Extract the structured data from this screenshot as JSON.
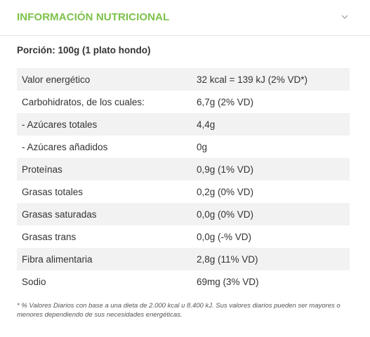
{
  "header": {
    "title": "INFORMACIÓN NUTRICIONAL"
  },
  "portion": "Porción: 100g (1 plato hondo)",
  "rows": [
    {
      "label": "Valor energético",
      "value": "32 kcal = 139 kJ (2% VD*)"
    },
    {
      "label": "Carbohidratos, de los cuales:",
      "value": "6,7g (2% VD)"
    },
    {
      "label": "- Azúcares totales",
      "value": "4,4g"
    },
    {
      "label": "- Azúcares añadidos",
      "value": "0g"
    },
    {
      "label": "Proteínas",
      "value": "0,9g (1% VD)"
    },
    {
      "label": "Grasas totales",
      "value": "0,2g (0% VD)"
    },
    {
      "label": "Grasas saturadas",
      "value": "0,0g (0% VD)"
    },
    {
      "label": "Grasas trans",
      "value": "0,0g (-% VD)"
    },
    {
      "label": "Fibra alimentaria",
      "value": "2,8g (11% VD)"
    },
    {
      "label": "Sodio",
      "value": "69mg (3% VD)"
    }
  ],
  "footnote": "* % Valores Diarios con base a una dieta de 2.000 kcal u 8.400 kJ. Sus valores diarios pueden ser mayores o menores dependiendo de sus necesidades energéticas.",
  "colors": {
    "accent": "#7cc24a",
    "row_stripe": "#f2f2f2",
    "divider": "#e3e3e3"
  },
  "icons": {
    "toggle": "chevron-down-icon"
  }
}
